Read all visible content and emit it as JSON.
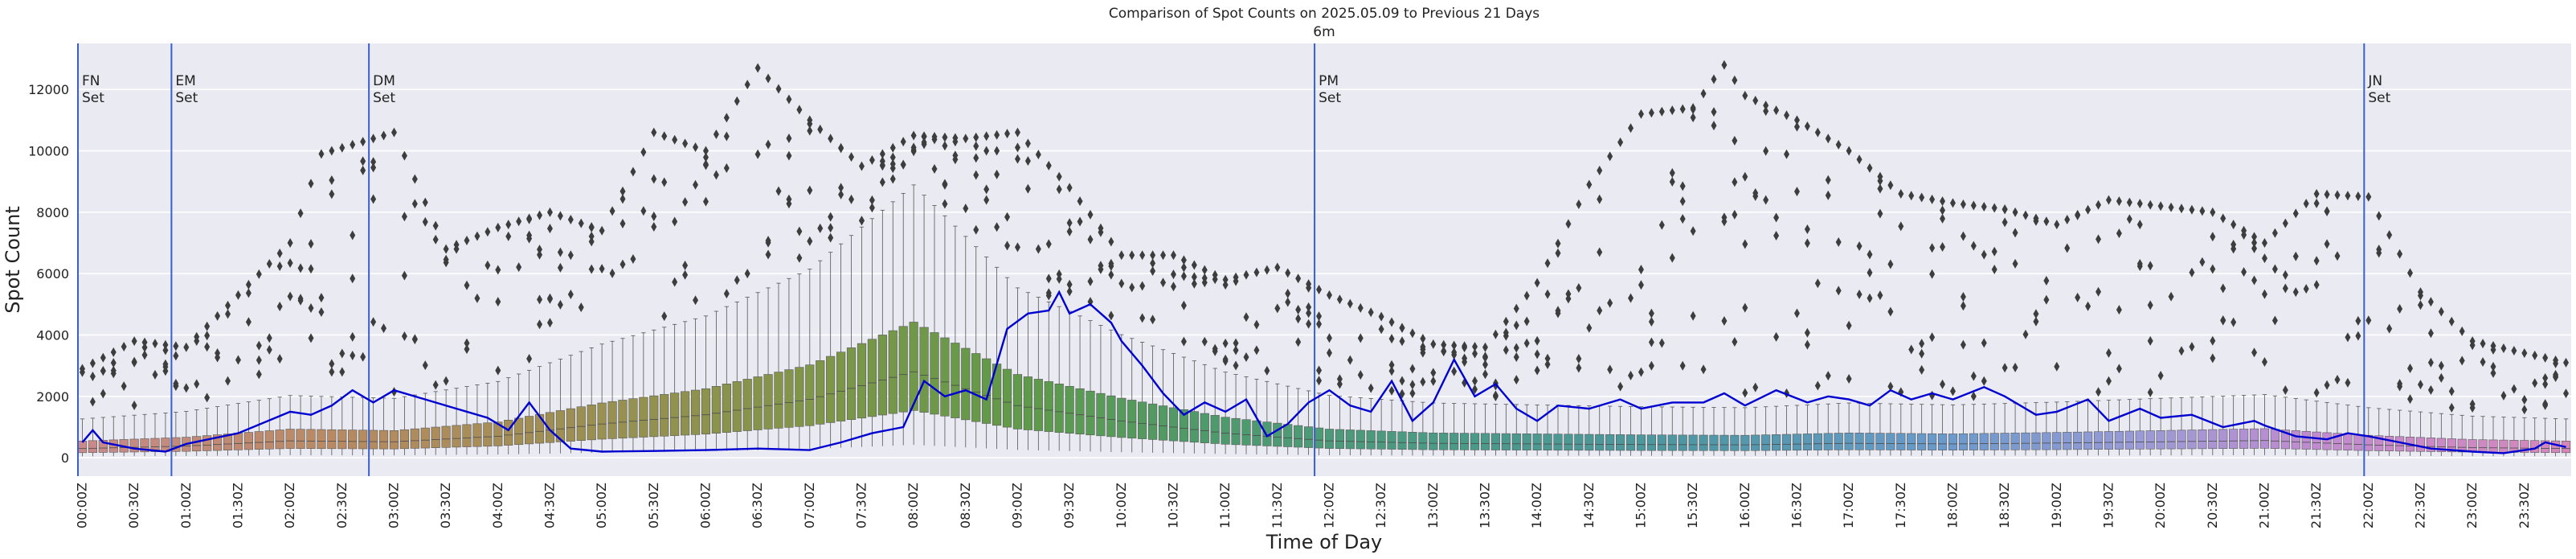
{
  "chart_data": {
    "type": "box",
    "title": "Comparison of Spot Counts on 2025.05.09 to Previous 21 Days",
    "subtitle": "6m",
    "xlabel": "Time of Day",
    "ylabel": "Spot Count",
    "ylim": [
      -600,
      13500
    ],
    "yticks": [
      0,
      2000,
      4000,
      6000,
      8000,
      10000,
      12000
    ],
    "grid": true,
    "bin_minutes": 6,
    "xtick_labels": [
      "00:00Z",
      "00:30Z",
      "01:00Z",
      "01:30Z",
      "02:00Z",
      "02:30Z",
      "03:00Z",
      "03:30Z",
      "04:00Z",
      "04:30Z",
      "05:00Z",
      "05:30Z",
      "06:00Z",
      "06:30Z",
      "07:00Z",
      "07:30Z",
      "08:00Z",
      "08:30Z",
      "09:00Z",
      "09:30Z",
      "10:00Z",
      "10:30Z",
      "11:00Z",
      "11:30Z",
      "12:00Z",
      "12:30Z",
      "13:00Z",
      "13:30Z",
      "14:00Z",
      "14:30Z",
      "15:00Z",
      "15:30Z",
      "16:00Z",
      "16:30Z",
      "17:00Z",
      "17:30Z",
      "18:00Z",
      "18:30Z",
      "19:00Z",
      "19:30Z",
      "20:00Z",
      "20:30Z",
      "21:00Z",
      "21:30Z",
      "22:00Z",
      "22:30Z",
      "23:00Z",
      "23:30Z"
    ],
    "box_median_profile": [
      {
        "t": "00:00Z",
        "median": 300
      },
      {
        "t": "01:00Z",
        "median": 380
      },
      {
        "t": "02:00Z",
        "median": 550
      },
      {
        "t": "03:00Z",
        "median": 520
      },
      {
        "t": "04:00Z",
        "median": 700
      },
      {
        "t": "05:00Z",
        "median": 1100
      },
      {
        "t": "06:00Z",
        "median": 1400
      },
      {
        "t": "07:00Z",
        "median": 1900
      },
      {
        "t": "08:00Z",
        "median": 2800
      },
      {
        "t": "09:00Z",
        "median": 1700
      },
      {
        "t": "10:00Z",
        "median": 1200
      },
      {
        "t": "11:00Z",
        "median": 800
      },
      {
        "t": "12:00Z",
        "median": 550
      },
      {
        "t": "13:00Z",
        "median": 470
      },
      {
        "t": "14:00Z",
        "median": 450
      },
      {
        "t": "15:00Z",
        "median": 430
      },
      {
        "t": "16:00Z",
        "median": 420
      },
      {
        "t": "17:00Z",
        "median": 470
      },
      {
        "t": "18:00Z",
        "median": 450
      },
      {
        "t": "19:00Z",
        "median": 480
      },
      {
        "t": "20:00Z",
        "median": 520
      },
      {
        "t": "21:00Z",
        "median": 560
      },
      {
        "t": "22:00Z",
        "median": 420
      },
      {
        "t": "23:00Z",
        "median": 330
      },
      {
        "t": "23:54Z",
        "median": 300
      }
    ],
    "current_day_series": {
      "color": "#0000d0",
      "points": [
        {
          "t": "00:00Z",
          "v": 500
        },
        {
          "t": "00:06Z",
          "v": 900
        },
        {
          "t": "00:12Z",
          "v": 500
        },
        {
          "t": "00:30Z",
          "v": 300
        },
        {
          "t": "00:48Z",
          "v": 200
        },
        {
          "t": "01:00Z",
          "v": 450
        },
        {
          "t": "01:30Z",
          "v": 800
        },
        {
          "t": "02:00Z",
          "v": 1500
        },
        {
          "t": "02:12Z",
          "v": 1400
        },
        {
          "t": "02:24Z",
          "v": 1700
        },
        {
          "t": "02:36Z",
          "v": 2200
        },
        {
          "t": "02:48Z",
          "v": 1800
        },
        {
          "t": "03:00Z",
          "v": 2200
        },
        {
          "t": "03:18Z",
          "v": 1900
        },
        {
          "t": "03:36Z",
          "v": 1600
        },
        {
          "t": "03:54Z",
          "v": 1300
        },
        {
          "t": "04:06Z",
          "v": 900
        },
        {
          "t": "04:18Z",
          "v": 1800
        },
        {
          "t": "04:30Z",
          "v": 900
        },
        {
          "t": "04:42Z",
          "v": 300
        },
        {
          "t": "05:00Z",
          "v": 200
        },
        {
          "t": "05:30Z",
          "v": 220
        },
        {
          "t": "06:00Z",
          "v": 250
        },
        {
          "t": "06:30Z",
          "v": 300
        },
        {
          "t": "07:00Z",
          "v": 250
        },
        {
          "t": "07:18Z",
          "v": 500
        },
        {
          "t": "07:36Z",
          "v": 800
        },
        {
          "t": "07:54Z",
          "v": 1000
        },
        {
          "t": "08:06Z",
          "v": 2500
        },
        {
          "t": "08:18Z",
          "v": 2000
        },
        {
          "t": "08:30Z",
          "v": 2200
        },
        {
          "t": "08:42Z",
          "v": 1900
        },
        {
          "t": "08:54Z",
          "v": 4200
        },
        {
          "t": "09:06Z",
          "v": 4700
        },
        {
          "t": "09:18Z",
          "v": 4800
        },
        {
          "t": "09:24Z",
          "v": 5400
        },
        {
          "t": "09:30Z",
          "v": 4700
        },
        {
          "t": "09:42Z",
          "v": 5000
        },
        {
          "t": "09:54Z",
          "v": 4400
        },
        {
          "t": "10:00Z",
          "v": 3800
        },
        {
          "t": "10:12Z",
          "v": 3000
        },
        {
          "t": "10:24Z",
          "v": 2100
        },
        {
          "t": "10:36Z",
          "v": 1400
        },
        {
          "t": "10:48Z",
          "v": 1800
        },
        {
          "t": "11:00Z",
          "v": 1500
        },
        {
          "t": "11:12Z",
          "v": 1900
        },
        {
          "t": "11:24Z",
          "v": 700
        },
        {
          "t": "11:36Z",
          "v": 1100
        },
        {
          "t": "11:48Z",
          "v": 1800
        },
        {
          "t": "12:00Z",
          "v": 2200
        },
        {
          "t": "12:12Z",
          "v": 1700
        },
        {
          "t": "12:24Z",
          "v": 1500
        },
        {
          "t": "12:36Z",
          "v": 2500
        },
        {
          "t": "12:48Z",
          "v": 1200
        },
        {
          "t": "13:00Z",
          "v": 1800
        },
        {
          "t": "13:12Z",
          "v": 3200
        },
        {
          "t": "13:24Z",
          "v": 2000
        },
        {
          "t": "13:36Z",
          "v": 2400
        },
        {
          "t": "13:48Z",
          "v": 1600
        },
        {
          "t": "14:00Z",
          "v": 1200
        },
        {
          "t": "14:12Z",
          "v": 1700
        },
        {
          "t": "14:30Z",
          "v": 1600
        },
        {
          "t": "14:48Z",
          "v": 1900
        },
        {
          "t": "15:00Z",
          "v": 1600
        },
        {
          "t": "15:18Z",
          "v": 1800
        },
        {
          "t": "15:36Z",
          "v": 1800
        },
        {
          "t": "15:48Z",
          "v": 2100
        },
        {
          "t": "16:00Z",
          "v": 1700
        },
        {
          "t": "16:18Z",
          "v": 2200
        },
        {
          "t": "16:36Z",
          "v": 1800
        },
        {
          "t": "16:48Z",
          "v": 2000
        },
        {
          "t": "17:00Z",
          "v": 1900
        },
        {
          "t": "17:12Z",
          "v": 1700
        },
        {
          "t": "17:24Z",
          "v": 2200
        },
        {
          "t": "17:36Z",
          "v": 1900
        },
        {
          "t": "17:48Z",
          "v": 2100
        },
        {
          "t": "18:00Z",
          "v": 1900
        },
        {
          "t": "18:18Z",
          "v": 2300
        },
        {
          "t": "18:30Z",
          "v": 2000
        },
        {
          "t": "18:48Z",
          "v": 1400
        },
        {
          "t": "19:00Z",
          "v": 1500
        },
        {
          "t": "19:18Z",
          "v": 1900
        },
        {
          "t": "19:30Z",
          "v": 1200
        },
        {
          "t": "19:48Z",
          "v": 1600
        },
        {
          "t": "20:00Z",
          "v": 1300
        },
        {
          "t": "20:18Z",
          "v": 1400
        },
        {
          "t": "20:36Z",
          "v": 1000
        },
        {
          "t": "20:54Z",
          "v": 1200
        },
        {
          "t": "21:00Z",
          "v": 1050
        },
        {
          "t": "21:18Z",
          "v": 700
        },
        {
          "t": "21:36Z",
          "v": 600
        },
        {
          "t": "21:48Z",
          "v": 800
        },
        {
          "t": "22:00Z",
          "v": 700
        },
        {
          "t": "22:18Z",
          "v": 500
        },
        {
          "t": "22:36Z",
          "v": 300
        },
        {
          "t": "23:00Z",
          "v": 200
        },
        {
          "t": "23:18Z",
          "v": 150
        },
        {
          "t": "23:36Z",
          "v": 300
        },
        {
          "t": "23:42Z",
          "v": 500
        },
        {
          "t": "23:54Z",
          "v": 350
        }
      ]
    },
    "outlier_envelope": [
      {
        "t": "00:00Z",
        "max": 2900
      },
      {
        "t": "00:30Z",
        "max": 3800
      },
      {
        "t": "01:00Z",
        "max": 3600
      },
      {
        "t": "01:30Z",
        "max": 5300
      },
      {
        "t": "02:00Z",
        "max": 7000
      },
      {
        "t": "02:18Z",
        "max": 9900
      },
      {
        "t": "03:00Z",
        "max": 10600
      },
      {
        "t": "03:30Z",
        "max": 6800
      },
      {
        "t": "04:00Z",
        "max": 7500
      },
      {
        "t": "04:30Z",
        "max": 8000
      },
      {
        "t": "05:00Z",
        "max": 7400
      },
      {
        "t": "05:30Z",
        "max": 10600
      },
      {
        "t": "06:00Z",
        "max": 10000
      },
      {
        "t": "06:30Z",
        "max": 12700
      },
      {
        "t": "07:00Z",
        "max": 11000
      },
      {
        "t": "07:30Z",
        "max": 9500
      },
      {
        "t": "08:00Z",
        "max": 10500
      },
      {
        "t": "08:30Z",
        "max": 10400
      },
      {
        "t": "09:00Z",
        "max": 10600
      },
      {
        "t": "09:30Z",
        "max": 8800
      },
      {
        "t": "10:00Z",
        "max": 6600
      },
      {
        "t": "10:30Z",
        "max": 6600
      },
      {
        "t": "11:00Z",
        "max": 5800
      },
      {
        "t": "11:30Z",
        "max": 6200
      },
      {
        "t": "12:00Z",
        "max": 5300
      },
      {
        "t": "12:30Z",
        "max": 4600
      },
      {
        "t": "13:00Z",
        "max": 3700
      },
      {
        "t": "13:30Z",
        "max": 3600
      },
      {
        "t": "14:00Z",
        "max": 5700
      },
      {
        "t": "14:30Z",
        "max": 8900
      },
      {
        "t": "15:00Z",
        "max": 11200
      },
      {
        "t": "15:30Z",
        "max": 11400
      },
      {
        "t": "15:48Z",
        "max": 12800
      },
      {
        "t": "16:00Z",
        "max": 11800
      },
      {
        "t": "16:30Z",
        "max": 11000
      },
      {
        "t": "17:00Z",
        "max": 10000
      },
      {
        "t": "17:30Z",
        "max": 8600
      },
      {
        "t": "18:00Z",
        "max": 8300
      },
      {
        "t": "18:30Z",
        "max": 8100
      },
      {
        "t": "19:00Z",
        "max": 7600
      },
      {
        "t": "19:30Z",
        "max": 8400
      },
      {
        "t": "20:00Z",
        "max": 8200
      },
      {
        "t": "20:30Z",
        "max": 8000
      },
      {
        "t": "21:00Z",
        "max": 7000
      },
      {
        "t": "21:30Z",
        "max": 8600
      },
      {
        "t": "22:00Z",
        "max": 8500
      },
      {
        "t": "22:30Z",
        "max": 5400
      },
      {
        "t": "23:00Z",
        "max": 3800
      },
      {
        "t": "23:54Z",
        "max": 3100
      }
    ],
    "annotations": [
      {
        "t": "00:00Z",
        "label1": "FN",
        "label2": "Set"
      },
      {
        "t": "00:54Z",
        "label1": "EM",
        "label2": "Set"
      },
      {
        "t": "02:48Z",
        "label1": "DM",
        "label2": "Set"
      },
      {
        "t": "11:54Z",
        "label1": "PM",
        "label2": "Set"
      },
      {
        "t": "22:00Z",
        "label1": "JN",
        "label2": "Set"
      }
    ],
    "colors": {
      "background": "#eaeaf2",
      "grid": "#ffffff",
      "current_line": "#0000d0",
      "annotation_line": "#3a5fcd",
      "outlier": "#3d3d3d"
    }
  }
}
